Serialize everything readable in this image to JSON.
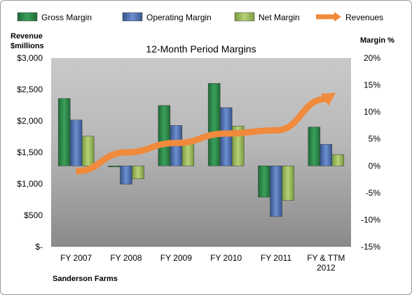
{
  "chart_data": {
    "type": "bar",
    "title": "12-Month Period Margins",
    "company": "Sanderson Farms",
    "categories": [
      "FY 2007",
      "FY 2008",
      "FY 2009",
      "FY 2010",
      "FY 2011",
      "FY & TTM 2012"
    ],
    "series": [
      {
        "name": "Gross Margin",
        "axis": "right",
        "values": [
          12.5,
          -0.2,
          11.2,
          15.3,
          -5.8,
          7.2
        ]
      },
      {
        "name": "Operating Margin",
        "axis": "right",
        "values": [
          8.5,
          -3.4,
          7.5,
          10.8,
          -9.4,
          4.0
        ]
      },
      {
        "name": "Net Margin",
        "axis": "right",
        "values": [
          5.5,
          -2.4,
          4.6,
          7.4,
          -6.4,
          2.1
        ]
      },
      {
        "name": "Revenues",
        "type": "line",
        "axis": "left",
        "values": [
          1200,
          1500,
          1650,
          1800,
          1850,
          2350
        ]
      }
    ],
    "left_axis": {
      "label_line1": "Revenue",
      "label_line2": "$millions",
      "ylim": [
        0,
        3000
      ],
      "ticks": [
        {
          "v": 3000,
          "t": "$3,000"
        },
        {
          "v": 2500,
          "t": "$2,500"
        },
        {
          "v": 2000,
          "t": "$2,000"
        },
        {
          "v": 1500,
          "t": "$1,500"
        },
        {
          "v": 1000,
          "t": "$1,000"
        },
        {
          "v": 500,
          "t": "$500"
        },
        {
          "v": 0,
          "t": "$-"
        }
      ]
    },
    "right_axis": {
      "label": "Margin %",
      "ylim": [
        -15,
        20
      ],
      "ticks": [
        {
          "v": 20,
          "t": "20%"
        },
        {
          "v": 15,
          "t": "15%"
        },
        {
          "v": 10,
          "t": "10%"
        },
        {
          "v": 5,
          "t": "5%"
        },
        {
          "v": 0,
          "t": "0%"
        },
        {
          "v": -5,
          "t": "-5%"
        },
        {
          "v": -10,
          "t": "-10%"
        },
        {
          "v": -15,
          "t": "-15%"
        }
      ]
    },
    "legend": {
      "position": "top",
      "items": [
        "Gross Margin",
        "Operating Margin",
        "Net Margin",
        "Revenues"
      ]
    },
    "colors": {
      "Gross Margin": "#2e8b4b",
      "Operating Margin": "#4f73b5",
      "Net Margin": "#9bbb59",
      "Revenues": "#f08a3c",
      "plot_bg_top": "#c9c9c9",
      "plot_bg_bottom": "#8a8a8a"
    },
    "grid": false
  }
}
